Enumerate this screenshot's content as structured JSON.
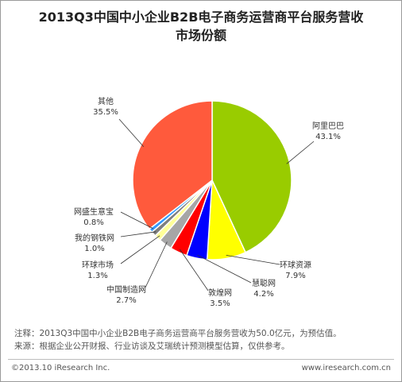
{
  "title_line1": "2013Q3中国中小企业B2B电子商务运营商平台服务营收",
  "title_line2": "市场份额",
  "chart_data": {
    "type": "pie",
    "unit": "%",
    "slices": [
      {
        "name": "阿里巴巴",
        "value": 43.1,
        "label": "43.1%",
        "color": "#99cc00"
      },
      {
        "name": "环球资源",
        "value": 7.9,
        "label": "7.9%",
        "color": "#ffff00"
      },
      {
        "name": "慧聪网",
        "value": 4.2,
        "label": "4.2%",
        "color": "#0000ff"
      },
      {
        "name": "敦煌网",
        "value": 3.5,
        "label": "3.5%",
        "color": "#ff0000"
      },
      {
        "name": "中国制造网",
        "value": 2.7,
        "label": "2.7%",
        "color": "#a6a6a6"
      },
      {
        "name": "环球市场",
        "value": 1.3,
        "label": "1.3%",
        "color": "#ffff99"
      },
      {
        "name": "我的钢铁网",
        "value": 1.0,
        "label": "1.0%",
        "color": "#7f7f7f"
      },
      {
        "name": "网盛生意宝",
        "value": 0.8,
        "label": "0.8%",
        "color": "#3399ff"
      },
      {
        "name": "其他",
        "value": 35.5,
        "label": "35.5%",
        "color": "#ff5a3c"
      }
    ]
  },
  "note": {
    "line1": "注释：2013Q3中国中小企业B2B电子商务运营商平台服务营收为50.0亿元，为预估值。",
    "line2": "来源：根据企业公开财报、行业访谈及艾瑞统计预测模型估算，仅供参考。"
  },
  "footer": {
    "copyright": "©2013.10 iResearch Inc.",
    "website": "www.iresearch.com.cn"
  }
}
